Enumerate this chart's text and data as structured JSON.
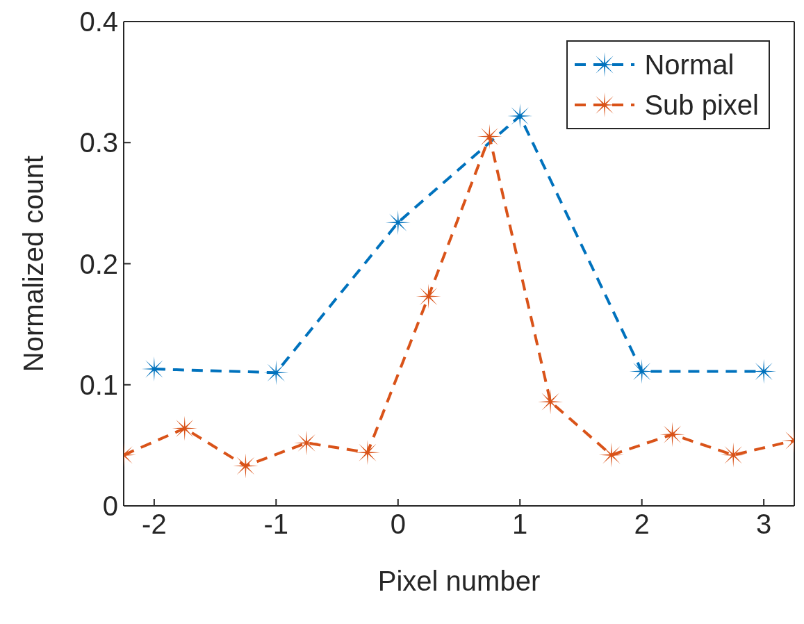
{
  "chart_data": {
    "type": "line",
    "xlabel": "Pixel number",
    "ylabel": "Normalized count",
    "xlim": [
      -2.25,
      3.25
    ],
    "xticks": [
      -2,
      -1,
      0,
      1,
      2,
      3
    ],
    "ylim": [
      0,
      0.4
    ],
    "yticks": [
      0,
      0.1,
      0.2,
      0.3,
      0.4
    ],
    "grid": false,
    "legend": "top right",
    "marker": "star",
    "line_style": "dashed",
    "series": [
      {
        "name": "Normal",
        "color": "#0072bd",
        "x": [
          -2,
          -1,
          0,
          1,
          2,
          3
        ],
        "values": [
          0.113,
          0.11,
          0.234,
          0.322,
          0.111,
          0.111
        ]
      },
      {
        "name": "Sub pixel",
        "color": "#d95319",
        "x": [
          -2.25,
          -1.75,
          -1.25,
          -0.75,
          -0.25,
          0.25,
          0.75,
          1.25,
          1.75,
          2.25,
          2.75,
          3.25
        ],
        "values": [
          0.042,
          0.064,
          0.033,
          0.052,
          0.044,
          0.173,
          0.305,
          0.086,
          0.042,
          0.059,
          0.042,
          0.054
        ]
      }
    ]
  }
}
